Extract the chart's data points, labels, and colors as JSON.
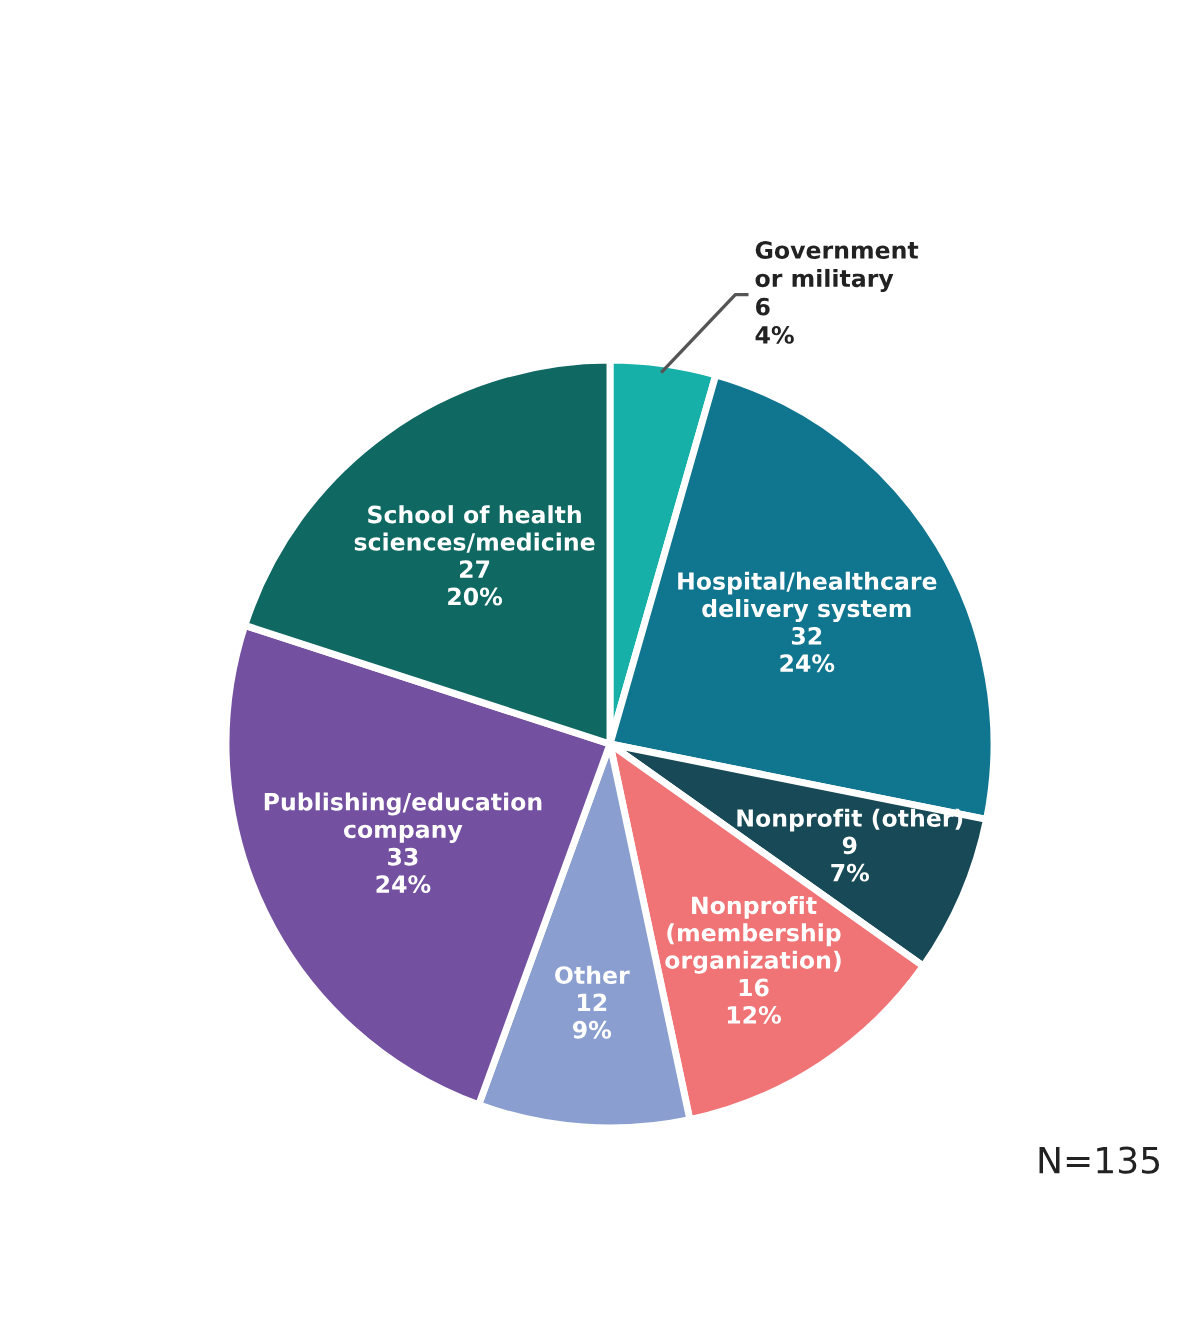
{
  "chart_data": {
    "type": "pie",
    "categories": [
      "Government\nor military",
      "Hospital/healthcare\ndelivery system",
      "Nonprofit (other)",
      "Nonprofit\n(membership\norganization)",
      "Other",
      "Publishing/education\ncompany",
      "School of health\nsciences/medicine"
    ],
    "values": [
      6,
      32,
      9,
      16,
      12,
      33,
      27
    ],
    "value_labels": [
      "6\n4%",
      "32\n24%",
      "9\n7%",
      "16\n12%",
      "12\n9%",
      "33\n24%",
      "27\n20%"
    ],
    "colors": [
      "#17b0a8",
      "#10758e",
      "#174a56",
      "#f07476",
      "#8a9fcf",
      "#7450a0",
      "#106862"
    ],
    "annotations": [
      "N=135"
    ]
  }
}
